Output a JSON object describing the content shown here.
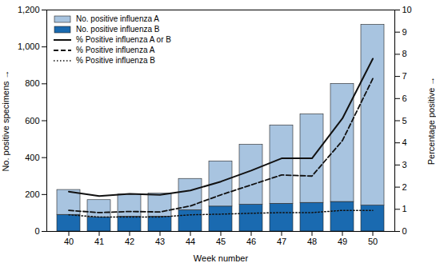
{
  "chart_data": {
    "type": "bar",
    "xlabel": "Week number",
    "ylabel": "No. positive specimens",
    "y2label": "Percentage positive",
    "categories": [
      40,
      41,
      42,
      43,
      44,
      45,
      46,
      47,
      48,
      49,
      50
    ],
    "stacked": true,
    "series": [
      {
        "name": "No. positive influenza A",
        "type": "bar",
        "color": "#a8c4e0",
        "values": [
          135,
          95,
          120,
          125,
          170,
          245,
          325,
          425,
          480,
          640,
          980
        ]
      },
      {
        "name": "No. positive influenza B",
        "type": "bar",
        "color": "#1a6ab0",
        "values": [
          90,
          75,
          80,
          80,
          115,
          135,
          145,
          150,
          155,
          160,
          140
        ]
      },
      {
        "name": "% Positive influenza A or B",
        "type": "line",
        "axis": "y2",
        "color": "#111111",
        "line_style": "solid",
        "values": [
          1.8,
          1.6,
          1.7,
          1.65,
          1.85,
          2.25,
          2.75,
          3.3,
          3.3,
          5.1,
          7.8
        ]
      },
      {
        "name": "% Positive influenza A",
        "type": "line",
        "axis": "y2",
        "color": "#111111",
        "line_style": "dashed",
        "values": [
          0.95,
          0.85,
          0.9,
          0.88,
          1.15,
          1.65,
          2.1,
          2.55,
          2.5,
          4.1,
          6.9
        ]
      },
      {
        "name": "% Positive influenza B",
        "type": "line",
        "axis": "y2",
        "color": "#111111",
        "line_style": "dotted",
        "values": [
          0.75,
          0.65,
          0.65,
          0.65,
          0.75,
          0.78,
          0.82,
          0.85,
          0.85,
          0.95,
          0.95
        ]
      }
    ],
    "ylim": [
      0,
      1200
    ],
    "yticks": [
      0,
      200,
      400,
      600,
      800,
      {
        "value": 1000,
        "label": "1,000"
      },
      {
        "value": 1200,
        "label": "1,200"
      }
    ],
    "y2lim": [
      0,
      10
    ],
    "y2ticks": [
      0,
      1,
      2,
      3,
      4,
      5,
      6,
      7,
      8,
      9,
      10
    ],
    "grid": false,
    "legend": "upper left"
  }
}
